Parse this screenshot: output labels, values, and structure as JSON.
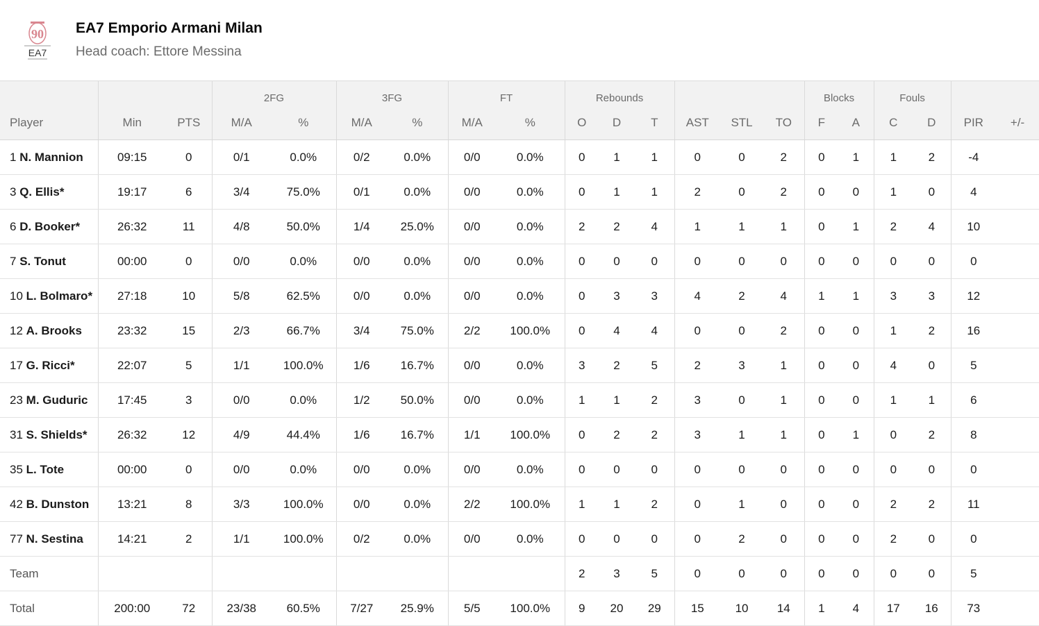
{
  "team": {
    "name": "EA7 Emporio Armani Milan",
    "coach": "Head coach: Ettore Messina",
    "logo_text_top": "90",
    "logo_text_bottom": "EA7"
  },
  "group_headers": {
    "fg2": "2FG",
    "fg3": "3FG",
    "ft": "FT",
    "rebounds": "Rebounds",
    "blocks": "Blocks",
    "fouls": "Fouls"
  },
  "columns": [
    "Player",
    "Min",
    "PTS",
    "M/A",
    "%",
    "M/A",
    "%",
    "M/A",
    "%",
    "O",
    "D",
    "T",
    "AST",
    "STL",
    "TO",
    "F",
    "A",
    "C",
    "D",
    "PIR",
    "+/-"
  ],
  "players": [
    {
      "num": "1",
      "name": "N. Mannion",
      "min": "09:15",
      "pts": "0",
      "fg2_ma": "0/1",
      "fg2_pct": "0.0%",
      "fg3_ma": "0/2",
      "fg3_pct": "0.0%",
      "ft_ma": "0/0",
      "ft_pct": "0.0%",
      "reb_o": "0",
      "reb_d": "1",
      "reb_t": "1",
      "ast": "0",
      "stl": "0",
      "to": "2",
      "blk_f": "0",
      "blk_a": "1",
      "foul_c": "1",
      "foul_d": "2",
      "pir": "-4",
      "pm": ""
    },
    {
      "num": "3",
      "name": "Q. Ellis*",
      "min": "19:17",
      "pts": "6",
      "fg2_ma": "3/4",
      "fg2_pct": "75.0%",
      "fg3_ma": "0/1",
      "fg3_pct": "0.0%",
      "ft_ma": "0/0",
      "ft_pct": "0.0%",
      "reb_o": "0",
      "reb_d": "1",
      "reb_t": "1",
      "ast": "2",
      "stl": "0",
      "to": "2",
      "blk_f": "0",
      "blk_a": "0",
      "foul_c": "1",
      "foul_d": "0",
      "pir": "4",
      "pm": ""
    },
    {
      "num": "6",
      "name": "D. Booker*",
      "min": "26:32",
      "pts": "11",
      "fg2_ma": "4/8",
      "fg2_pct": "50.0%",
      "fg3_ma": "1/4",
      "fg3_pct": "25.0%",
      "ft_ma": "0/0",
      "ft_pct": "0.0%",
      "reb_o": "2",
      "reb_d": "2",
      "reb_t": "4",
      "ast": "1",
      "stl": "1",
      "to": "1",
      "blk_f": "0",
      "blk_a": "1",
      "foul_c": "2",
      "foul_d": "4",
      "pir": "10",
      "pm": ""
    },
    {
      "num": "7",
      "name": "S. Tonut",
      "min": "00:00",
      "pts": "0",
      "fg2_ma": "0/0",
      "fg2_pct": "0.0%",
      "fg3_ma": "0/0",
      "fg3_pct": "0.0%",
      "ft_ma": "0/0",
      "ft_pct": "0.0%",
      "reb_o": "0",
      "reb_d": "0",
      "reb_t": "0",
      "ast": "0",
      "stl": "0",
      "to": "0",
      "blk_f": "0",
      "blk_a": "0",
      "foul_c": "0",
      "foul_d": "0",
      "pir": "0",
      "pm": ""
    },
    {
      "num": "10",
      "name": "L. Bolmaro*",
      "min": "27:18",
      "pts": "10",
      "fg2_ma": "5/8",
      "fg2_pct": "62.5%",
      "fg3_ma": "0/0",
      "fg3_pct": "0.0%",
      "ft_ma": "0/0",
      "ft_pct": "0.0%",
      "reb_o": "0",
      "reb_d": "3",
      "reb_t": "3",
      "ast": "4",
      "stl": "2",
      "to": "4",
      "blk_f": "1",
      "blk_a": "1",
      "foul_c": "3",
      "foul_d": "3",
      "pir": "12",
      "pm": ""
    },
    {
      "num": "12",
      "name": "A. Brooks",
      "min": "23:32",
      "pts": "15",
      "fg2_ma": "2/3",
      "fg2_pct": "66.7%",
      "fg3_ma": "3/4",
      "fg3_pct": "75.0%",
      "ft_ma": "2/2",
      "ft_pct": "100.0%",
      "reb_o": "0",
      "reb_d": "4",
      "reb_t": "4",
      "ast": "0",
      "stl": "0",
      "to": "2",
      "blk_f": "0",
      "blk_a": "0",
      "foul_c": "1",
      "foul_d": "2",
      "pir": "16",
      "pm": ""
    },
    {
      "num": "17",
      "name": "G. Ricci*",
      "min": "22:07",
      "pts": "5",
      "fg2_ma": "1/1",
      "fg2_pct": "100.0%",
      "fg3_ma": "1/6",
      "fg3_pct": "16.7%",
      "ft_ma": "0/0",
      "ft_pct": "0.0%",
      "reb_o": "3",
      "reb_d": "2",
      "reb_t": "5",
      "ast": "2",
      "stl": "3",
      "to": "1",
      "blk_f": "0",
      "blk_a": "0",
      "foul_c": "4",
      "foul_d": "0",
      "pir": "5",
      "pm": ""
    },
    {
      "num": "23",
      "name": "M. Guduric",
      "min": "17:45",
      "pts": "3",
      "fg2_ma": "0/0",
      "fg2_pct": "0.0%",
      "fg3_ma": "1/2",
      "fg3_pct": "50.0%",
      "ft_ma": "0/0",
      "ft_pct": "0.0%",
      "reb_o": "1",
      "reb_d": "1",
      "reb_t": "2",
      "ast": "3",
      "stl": "0",
      "to": "1",
      "blk_f": "0",
      "blk_a": "0",
      "foul_c": "1",
      "foul_d": "1",
      "pir": "6",
      "pm": ""
    },
    {
      "num": "31",
      "name": "S. Shields*",
      "min": "26:32",
      "pts": "12",
      "fg2_ma": "4/9",
      "fg2_pct": "44.4%",
      "fg3_ma": "1/6",
      "fg3_pct": "16.7%",
      "ft_ma": "1/1",
      "ft_pct": "100.0%",
      "reb_o": "0",
      "reb_d": "2",
      "reb_t": "2",
      "ast": "3",
      "stl": "1",
      "to": "1",
      "blk_f": "0",
      "blk_a": "1",
      "foul_c": "0",
      "foul_d": "2",
      "pir": "8",
      "pm": ""
    },
    {
      "num": "35",
      "name": "L. Tote",
      "min": "00:00",
      "pts": "0",
      "fg2_ma": "0/0",
      "fg2_pct": "0.0%",
      "fg3_ma": "0/0",
      "fg3_pct": "0.0%",
      "ft_ma": "0/0",
      "ft_pct": "0.0%",
      "reb_o": "0",
      "reb_d": "0",
      "reb_t": "0",
      "ast": "0",
      "stl": "0",
      "to": "0",
      "blk_f": "0",
      "blk_a": "0",
      "foul_c": "0",
      "foul_d": "0",
      "pir": "0",
      "pm": ""
    },
    {
      "num": "42",
      "name": "B. Dunston",
      "min": "13:21",
      "pts": "8",
      "fg2_ma": "3/3",
      "fg2_pct": "100.0%",
      "fg3_ma": "0/0",
      "fg3_pct": "0.0%",
      "ft_ma": "2/2",
      "ft_pct": "100.0%",
      "reb_o": "1",
      "reb_d": "1",
      "reb_t": "2",
      "ast": "0",
      "stl": "1",
      "to": "0",
      "blk_f": "0",
      "blk_a": "0",
      "foul_c": "2",
      "foul_d": "2",
      "pir": "11",
      "pm": ""
    },
    {
      "num": "77",
      "name": "N. Sestina",
      "min": "14:21",
      "pts": "2",
      "fg2_ma": "1/1",
      "fg2_pct": "100.0%",
      "fg3_ma": "0/2",
      "fg3_pct": "0.0%",
      "ft_ma": "0/0",
      "ft_pct": "0.0%",
      "reb_o": "0",
      "reb_d": "0",
      "reb_t": "0",
      "ast": "0",
      "stl": "2",
      "to": "0",
      "blk_f": "0",
      "blk_a": "0",
      "foul_c": "2",
      "foul_d": "0",
      "pir": "0",
      "pm": ""
    }
  ],
  "team_row": {
    "label": "Team",
    "min": "",
    "pts": "",
    "fg2_ma": "",
    "fg2_pct": "",
    "fg3_ma": "",
    "fg3_pct": "",
    "ft_ma": "",
    "ft_pct": "",
    "reb_o": "2",
    "reb_d": "3",
    "reb_t": "5",
    "ast": "0",
    "stl": "0",
    "to": "0",
    "blk_f": "0",
    "blk_a": "0",
    "foul_c": "0",
    "foul_d": "0",
    "pir": "5",
    "pm": ""
  },
  "total_row": {
    "label": "Total",
    "min": "200:00",
    "pts": "72",
    "fg2_ma": "23/38",
    "fg2_pct": "60.5%",
    "fg3_ma": "7/27",
    "fg3_pct": "25.9%",
    "ft_ma": "5/5",
    "ft_pct": "100.0%",
    "reb_o": "9",
    "reb_d": "20",
    "reb_t": "29",
    "ast": "15",
    "stl": "10",
    "to": "14",
    "blk_f": "1",
    "blk_a": "4",
    "foul_c": "17",
    "foul_d": "16",
    "pir": "73",
    "pm": ""
  },
  "colors": {
    "accent_logo": "#d9868f",
    "header_bg": "#f2f2f2",
    "muted_text": "#6b6b6b"
  }
}
